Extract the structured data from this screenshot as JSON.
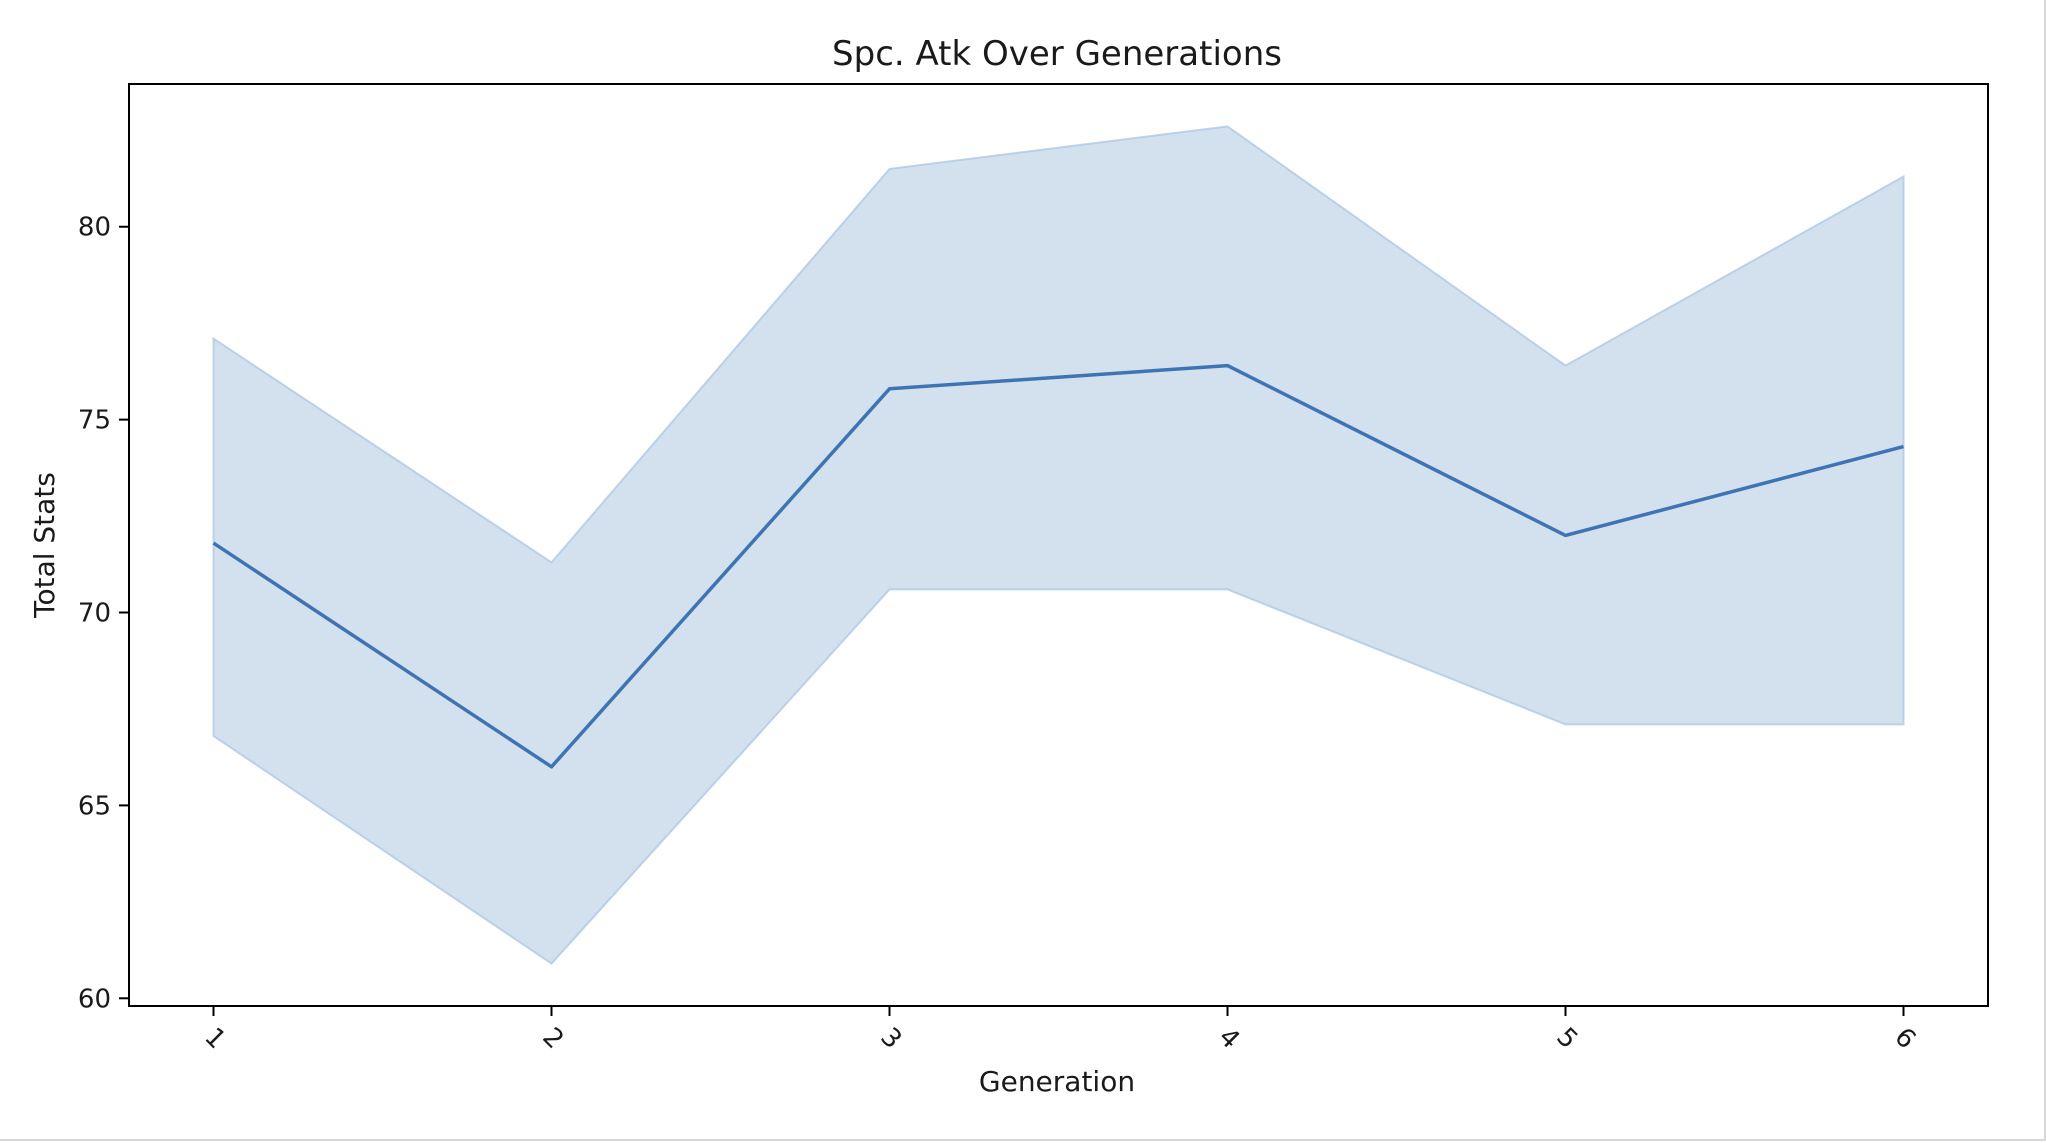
{
  "colors": {
    "line": "#3e74b3",
    "band": "#a8c3df",
    "axes": "#000000"
  },
  "chart_data": {
    "type": "line",
    "title": "Spc. Atk Over Generations",
    "xlabel": "Generation",
    "ylabel": "Total Stats",
    "x": [
      1,
      2,
      3,
      4,
      5,
      6
    ],
    "xtick_labels": [
      "1",
      "2",
      "3",
      "4",
      "5",
      "6"
    ],
    "xlim": [
      0.75,
      6.25
    ],
    "ylim": [
      59.8,
      83.7
    ],
    "yticks": [
      60,
      65,
      70,
      75,
      80
    ],
    "ytick_labels": [
      "60",
      "65",
      "70",
      "75",
      "80"
    ],
    "grid": false,
    "legend": "none",
    "series": [
      {
        "values": [
          71.8,
          66.0,
          75.8,
          76.4,
          72.0,
          74.3
        ],
        "ci_lower": [
          66.8,
          60.9,
          70.6,
          70.6,
          67.1,
          67.1
        ],
        "ci_upper": [
          77.1,
          71.3,
          81.5,
          82.6,
          76.4,
          81.3
        ]
      }
    ]
  }
}
